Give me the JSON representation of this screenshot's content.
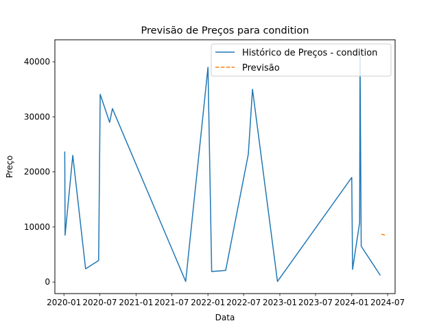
{
  "chart_data": {
    "type": "line",
    "title": "Previsão de Preços para condition",
    "xlabel": "Data",
    "ylabel": "Preço",
    "x_ticks": [
      "2020-01",
      "2020-07",
      "2021-01",
      "2021-07",
      "2022-01",
      "2022-07",
      "2023-01",
      "2023-07",
      "2024-01",
      "2024-07"
    ],
    "y_ticks": [
      "0",
      "10000",
      "20000",
      "30000",
      "40000"
    ],
    "xlim": [
      "2019-11-16",
      "2024-08-08"
    ],
    "ylim": [
      -2100,
      44000
    ],
    "grid": false,
    "legend_position": "top-right",
    "series": [
      {
        "name": "Histórico de Preços - condition",
        "color": "#1f77b4",
        "style": "solid",
        "points": [
          [
            "2020-01-05",
            23700
          ],
          [
            "2020-01-07",
            8500
          ],
          [
            "2020-02-15",
            23000
          ],
          [
            "2020-04-20",
            2400
          ],
          [
            "2020-06-25",
            3900
          ],
          [
            "2020-07-03",
            34100
          ],
          [
            "2020-08-20",
            29000
          ],
          [
            "2020-09-03",
            31500
          ],
          [
            "2021-09-10",
            100
          ],
          [
            "2022-01-01",
            39000
          ],
          [
            "2022-01-20",
            1900
          ],
          [
            "2022-04-01",
            2100
          ],
          [
            "2022-07-25",
            23200
          ],
          [
            "2022-08-15",
            35000
          ],
          [
            "2022-12-20",
            100
          ],
          [
            "2024-01-01",
            19000
          ],
          [
            "2024-01-05",
            2300
          ],
          [
            "2024-02-10",
            10800
          ],
          [
            "2024-02-12",
            41000
          ],
          [
            "2024-02-18",
            6500
          ],
          [
            "2024-05-25",
            1200
          ]
        ]
      },
      {
        "name": "Previsão",
        "color": "#ff7f0e",
        "style": "dashed",
        "points": [
          [
            "2024-05-30",
            8700
          ],
          [
            "2024-06-20",
            8500
          ]
        ]
      }
    ]
  }
}
